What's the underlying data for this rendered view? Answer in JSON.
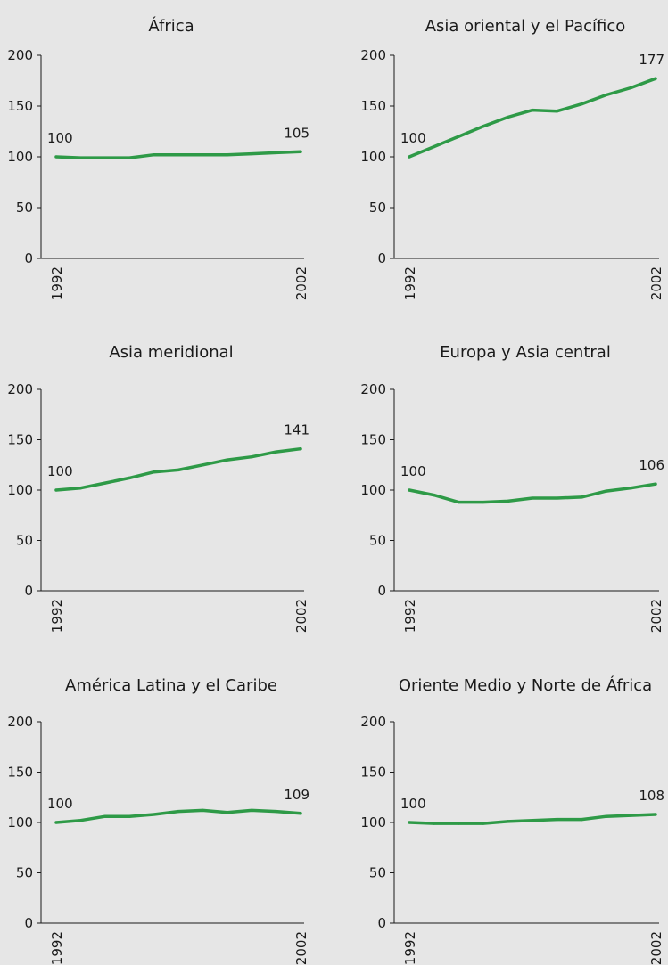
{
  "chart_data": [
    {
      "type": "line",
      "title": "África",
      "x_ticks": [
        "1992",
        "2002"
      ],
      "y_ticks": [
        0,
        50,
        100,
        150,
        200
      ],
      "ylim": [
        0,
        200
      ],
      "x": [
        1992,
        1993,
        1994,
        1995,
        1996,
        1997,
        1998,
        1999,
        2000,
        2001,
        2002
      ],
      "values": [
        100,
        99,
        99,
        99,
        102,
        102,
        102,
        102,
        103,
        104,
        105
      ],
      "start_label": "100",
      "end_label": "105"
    },
    {
      "type": "line",
      "title": "Asia oriental y el Pacífico",
      "x_ticks": [
        "1992",
        "2002"
      ],
      "y_ticks": [
        0,
        50,
        100,
        150,
        200
      ],
      "ylim": [
        0,
        200
      ],
      "x": [
        1992,
        1993,
        1994,
        1995,
        1996,
        1997,
        1998,
        1999,
        2000,
        2001,
        2002
      ],
      "values": [
        100,
        110,
        120,
        130,
        139,
        146,
        145,
        152,
        161,
        168,
        177
      ],
      "start_label": "100",
      "end_label": "177"
    },
    {
      "type": "line",
      "title": "Asia meridional",
      "x_ticks": [
        "1992",
        "2002"
      ],
      "y_ticks": [
        0,
        50,
        100,
        150,
        200
      ],
      "ylim": [
        0,
        200
      ],
      "x": [
        1992,
        1993,
        1994,
        1995,
        1996,
        1997,
        1998,
        1999,
        2000,
        2001,
        2002
      ],
      "values": [
        100,
        102,
        107,
        112,
        118,
        120,
        125,
        130,
        133,
        138,
        141
      ],
      "start_label": "100",
      "end_label": "141"
    },
    {
      "type": "line",
      "title": "Europa y Asia central",
      "x_ticks": [
        "1992",
        "2002"
      ],
      "y_ticks": [
        0,
        50,
        100,
        150,
        200
      ],
      "ylim": [
        0,
        200
      ],
      "x": [
        1992,
        1993,
        1994,
        1995,
        1996,
        1997,
        1998,
        1999,
        2000,
        2001,
        2002
      ],
      "values": [
        100,
        95,
        88,
        88,
        89,
        92,
        92,
        93,
        99,
        102,
        106
      ],
      "start_label": "100",
      "end_label": "106"
    },
    {
      "type": "line",
      "title": "América Latina y el Caribe",
      "x_ticks": [
        "1992",
        "2002"
      ],
      "y_ticks": [
        0,
        50,
        100,
        150,
        200
      ],
      "ylim": [
        0,
        200
      ],
      "x": [
        1992,
        1993,
        1994,
        1995,
        1996,
        1997,
        1998,
        1999,
        2000,
        2001,
        2002
      ],
      "values": [
        100,
        102,
        106,
        106,
        108,
        111,
        112,
        110,
        112,
        111,
        109
      ],
      "start_label": "100",
      "end_label": "109"
    },
    {
      "type": "line",
      "title": "Oriente Medio y Norte de África",
      "x_ticks": [
        "1992",
        "2002"
      ],
      "y_ticks": [
        0,
        50,
        100,
        150,
        200
      ],
      "ylim": [
        0,
        200
      ],
      "x": [
        1992,
        1993,
        1994,
        1995,
        1996,
        1997,
        1998,
        1999,
        2000,
        2001,
        2002
      ],
      "values": [
        100,
        99,
        99,
        99,
        101,
        102,
        103,
        103,
        106,
        107,
        108
      ],
      "start_label": "100",
      "end_label": "108"
    }
  ],
  "colors": {
    "line": "#2e9a47",
    "background": "#e6e6e6",
    "axis": "#1a1a1a"
  }
}
